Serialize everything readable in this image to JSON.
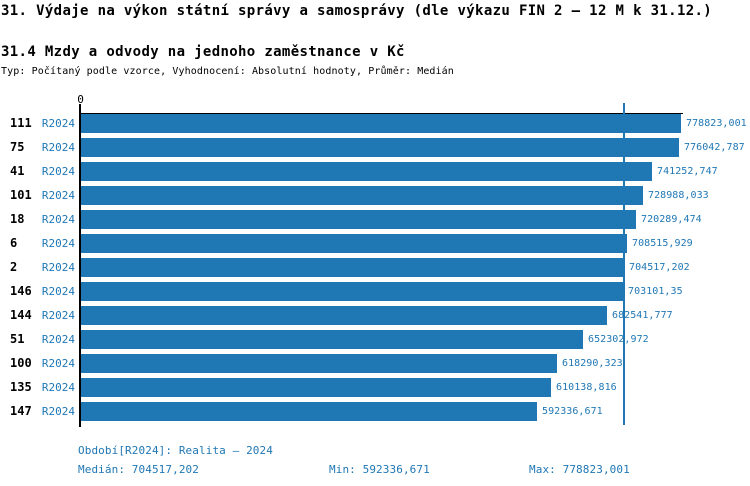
{
  "header": {
    "title": "31. Výdaje na výkon státní správy a samosprávy (dle výkazu FIN 2 – 12 M k 31.12.)",
    "subtitle": "31.4 Mzdy a odvody na jednoho zaměstnance v Kč",
    "meta": "Typ: Počítaný podle vzorce, Vyhodnocení: Absolutní hodnoty, Průměr: Medián"
  },
  "chart_data": {
    "type": "bar",
    "orientation": "horizontal",
    "title": "31.4 Mzdy a odvody na jednoho zaměstnance v Kč",
    "categories": [
      "111",
      "75",
      "41",
      "101",
      "18",
      "6",
      "2",
      "146",
      "144",
      "51",
      "100",
      "135",
      "147"
    ],
    "series": [
      {
        "name": "R2024",
        "values": [
          778823.001,
          776042.787,
          741252.747,
          728988.033,
          720289.474,
          708515.929,
          704517.202,
          703101.35,
          682541.777,
          652302.972,
          618290.323,
          610138.816,
          592336.671
        ],
        "value_labels": [
          "778823,001",
          "776042,787",
          "741252,747",
          "728988,033",
          "720289,474",
          "708515,929",
          "704517,202",
          "703101,35",
          "682541,777",
          "652302,972",
          "618290,323",
          "610138,816",
          "592336,671"
        ]
      }
    ],
    "x_zero_label": "0",
    "xlim": [
      0,
      778823.001
    ],
    "median_value": 704517.202,
    "grid": false,
    "legend_position": "none",
    "colors": {
      "bar": "#1f77b4",
      "median_line": "#1f77b4",
      "axis": "#000000",
      "category_text": "#000000",
      "series_text": "#1f77b4",
      "value_text": "#1f77b4",
      "footer_text": "#1f77b4"
    }
  },
  "footer": {
    "period_label": "Období[R2024]: Realita – 2024",
    "median_label": "Medián: 704517,202",
    "min_label": "Min: 592336,671",
    "max_label": "Max: 778823,001"
  }
}
